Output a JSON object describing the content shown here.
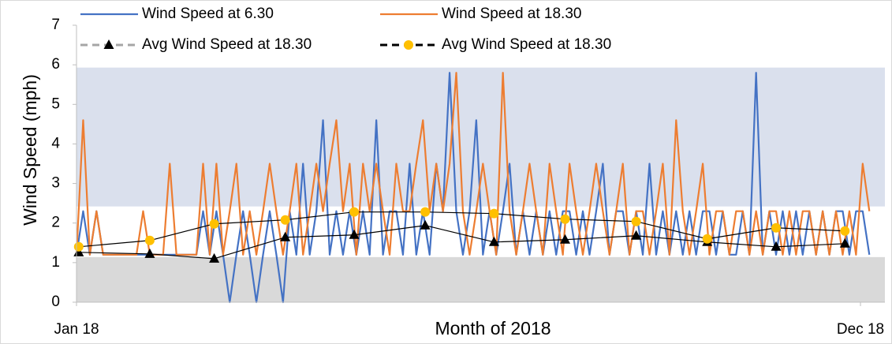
{
  "chart_data": {
    "type": "line",
    "ylabel": "Wind Speed (mph)",
    "xlabel": "Month of 2018",
    "ylim": [
      0,
      7
    ],
    "yticks": [
      0,
      1,
      2,
      3,
      4,
      5,
      6,
      7
    ],
    "xlim": [
      1,
      365
    ],
    "xticks": [
      {
        "value": 1,
        "label": "Jan 18"
      },
      {
        "value": 354,
        "label": "Dec 18"
      }
    ],
    "legend": "top",
    "bands": [
      {
        "from": 2.42,
        "to": 5.93,
        "color": "#dae0ed"
      },
      {
        "from": 0,
        "to": 1.14,
        "color": "#d9d9d9"
      }
    ],
    "x": [
      1,
      4,
      7,
      10,
      13,
      16,
      19,
      22,
      25,
      28,
      31,
      34,
      37,
      40,
      43,
      46,
      49,
      52,
      55,
      58,
      61,
      64,
      67,
      70,
      73,
      76,
      79,
      82,
      85,
      88,
      91,
      94,
      97,
      100,
      103,
      106,
      109,
      112,
      115,
      118,
      121,
      124,
      127,
      130,
      133,
      136,
      139,
      142,
      145,
      148,
      151,
      154,
      157,
      160,
      163,
      166,
      169,
      172,
      175,
      178,
      181,
      184,
      187,
      190,
      193,
      196,
      199,
      202,
      205,
      208,
      211,
      214,
      217,
      220,
      223,
      226,
      229,
      232,
      235,
      238,
      241,
      244,
      247,
      250,
      253,
      256,
      259,
      262,
      265,
      268,
      271,
      274,
      277,
      280,
      283,
      286,
      289,
      292,
      295,
      298,
      301,
      304,
      307,
      310,
      313,
      316,
      319,
      322,
      325,
      328,
      331,
      334,
      337,
      340,
      343,
      346,
      349,
      352,
      355,
      358
    ],
    "series": [
      {
        "name": "Wind Speed at 6.30",
        "color": "#4472c4",
        "values": [
          1.2,
          2.3,
          1.2,
          2.3,
          1.2,
          1.2,
          1.2,
          1.2,
          1.2,
          1.2,
          1.2,
          1.2,
          1.2,
          1.2,
          1.2,
          1.2,
          1.2,
          1.2,
          1.2,
          2.3,
          1.2,
          2.3,
          1.2,
          0,
          1.2,
          2.3,
          1.2,
          0,
          1.2,
          2.3,
          1.2,
          0,
          2.3,
          1.2,
          3.5,
          1.2,
          2.3,
          4.6,
          1.2,
          2.3,
          1.2,
          2.3,
          1.2,
          2.3,
          1.2,
          4.6,
          1.2,
          2.3,
          2.3,
          1.2,
          3.5,
          1.2,
          2.3,
          1.2,
          3.5,
          2.3,
          5.8,
          2.3,
          1.2,
          2.3,
          4.6,
          1.2,
          2.3,
          1.2,
          2.3,
          3.5,
          1.2,
          2.3,
          1.2,
          2.3,
          1.2,
          2.3,
          1.2,
          2.3,
          2.3,
          1.2,
          2.3,
          1.2,
          2.3,
          3.5,
          1.2,
          2.3,
          2.3,
          1.2,
          2.3,
          1.2,
          3.5,
          1.2,
          2.3,
          1.2,
          2.3,
          1.2,
          2.3,
          1.2,
          2.3,
          2.3,
          1.2,
          2.3,
          1.2,
          1.2,
          2.3,
          1.2,
          5.8,
          1.2,
          2.3,
          1.2,
          2.3,
          1.2,
          2.3,
          1.2,
          2.3,
          1.2,
          2.3,
          1.2,
          2.3,
          2.3,
          1.2,
          2.3,
          2.3,
          1.2
        ]
      },
      {
        "name": "Wind Speed at 18.30",
        "color": "#ed7d31",
        "values": [
          1.2,
          4.6,
          1.2,
          2.3,
          1.2,
          1.2,
          1.2,
          1.2,
          1.2,
          1.2,
          2.3,
          1.2,
          1.2,
          1.2,
          3.5,
          1.2,
          1.2,
          1.2,
          1.2,
          3.5,
          1.2,
          3.5,
          1.2,
          2.3,
          3.5,
          1.2,
          2.3,
          1.2,
          2.3,
          3.5,
          2.3,
          1.2,
          2.3,
          3.5,
          1.2,
          2.3,
          3.5,
          2.3,
          3.5,
          4.6,
          2.3,
          3.5,
          1.2,
          3.5,
          2.3,
          3.5,
          2.3,
          1.2,
          3.5,
          2.3,
          2.3,
          3.5,
          4.6,
          2.3,
          3.5,
          2.3,
          3.5,
          5.8,
          2.3,
          1.2,
          2.3,
          3.5,
          2.3,
          1.2,
          5.8,
          2.3,
          1.2,
          2.3,
          3.5,
          2.3,
          1.2,
          3.5,
          2.3,
          1.2,
          3.5,
          2.3,
          1.2,
          2.3,
          3.5,
          2.3,
          1.2,
          2.3,
          3.5,
          1.2,
          2.3,
          2.3,
          1.2,
          2.3,
          3.5,
          1.2,
          4.6,
          2.3,
          1.2,
          2.3,
          3.5,
          1.2,
          2.3,
          2.3,
          1.2,
          2.3,
          2.3,
          1.2,
          2.3,
          1.2,
          2.3,
          2.3,
          1.2,
          2.3,
          1.2,
          2.3,
          2.3,
          1.2,
          2.3,
          1.2,
          2.3,
          1.2,
          2.3,
          1.2,
          3.5,
          2.3
        ]
      },
      {
        "name": "Avg Wind Speed at 18.30",
        "color": "#000000",
        "legend_color": "#a6a6a6",
        "marker": "triangle",
        "marker_color": "#000000",
        "x": [
          2,
          34,
          63,
          95,
          126,
          158,
          189,
          221,
          253,
          285,
          316,
          347
        ],
        "values": [
          1.26,
          1.22,
          1.1,
          1.64,
          1.7,
          1.94,
          1.52,
          1.58,
          1.68,
          1.52,
          1.4,
          1.48
        ]
      },
      {
        "name": "Avg Wind Speed at 18.30",
        "color": "#000000",
        "legend_color": "#000000",
        "marker": "circle",
        "marker_color": "#ffc000",
        "x": [
          2,
          34,
          63,
          95,
          126,
          158,
          189,
          221,
          253,
          285,
          316,
          347
        ],
        "values": [
          1.4,
          1.56,
          1.98,
          2.08,
          2.28,
          2.28,
          2.24,
          2.1,
          2.04,
          1.6,
          1.88,
          1.8
        ]
      }
    ]
  }
}
